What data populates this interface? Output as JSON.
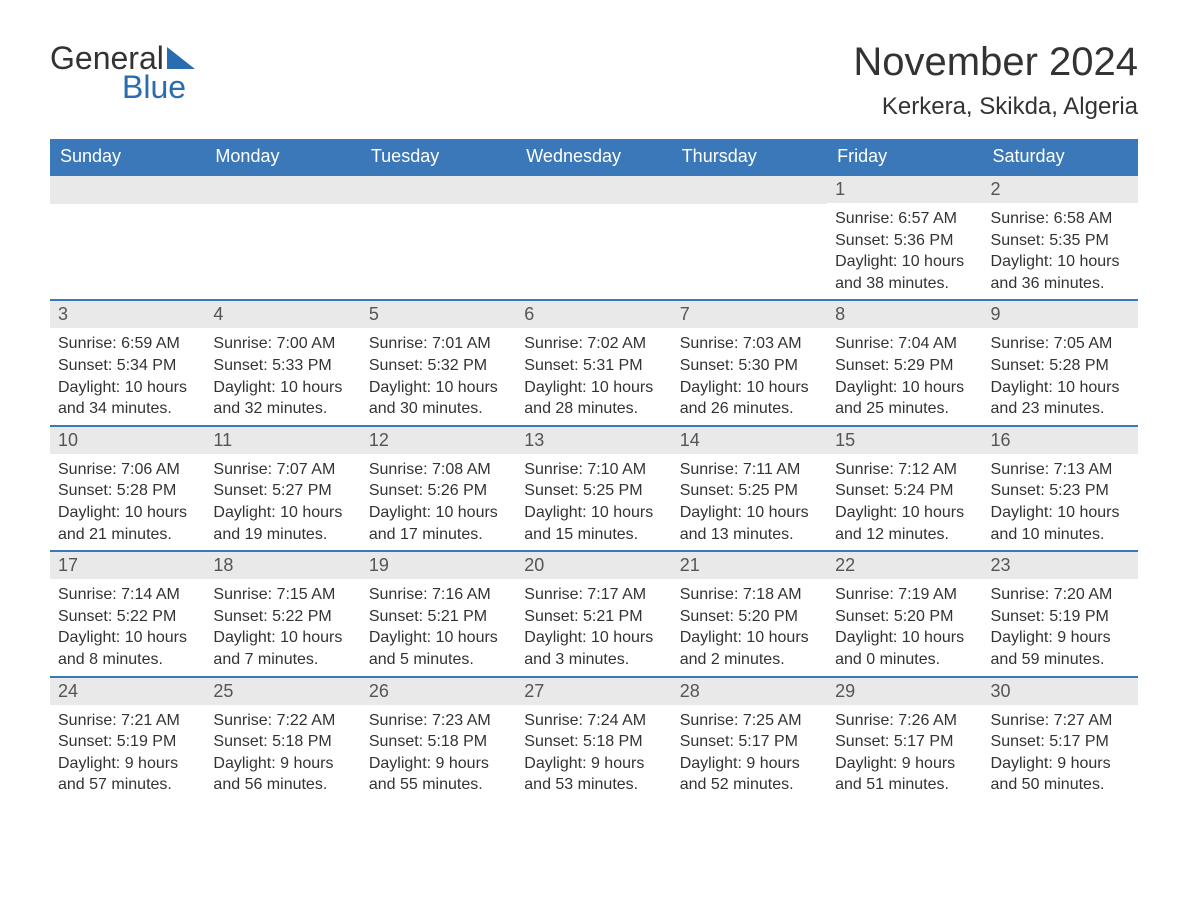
{
  "logo": {
    "part1": "General",
    "part2": "Blue"
  },
  "title": "November 2024",
  "location": "Kerkera, Skikda, Algeria",
  "colors": {
    "header_bg": "#3b78b9",
    "header_text": "#ffffff",
    "daynum_bg": "#e9e9e9",
    "border": "#3b78b9",
    "logo_blue": "#2a6cb0",
    "text": "#333333"
  },
  "day_names": [
    "Sunday",
    "Monday",
    "Tuesday",
    "Wednesday",
    "Thursday",
    "Friday",
    "Saturday"
  ],
  "weeks": [
    [
      {
        "empty": true
      },
      {
        "empty": true
      },
      {
        "empty": true
      },
      {
        "empty": true
      },
      {
        "empty": true
      },
      {
        "num": "1",
        "sunrise": "6:57 AM",
        "sunset": "5:36 PM",
        "daylight": "10 hours and 38 minutes."
      },
      {
        "num": "2",
        "sunrise": "6:58 AM",
        "sunset": "5:35 PM",
        "daylight": "10 hours and 36 minutes."
      }
    ],
    [
      {
        "num": "3",
        "sunrise": "6:59 AM",
        "sunset": "5:34 PM",
        "daylight": "10 hours and 34 minutes."
      },
      {
        "num": "4",
        "sunrise": "7:00 AM",
        "sunset": "5:33 PM",
        "daylight": "10 hours and 32 minutes."
      },
      {
        "num": "5",
        "sunrise": "7:01 AM",
        "sunset": "5:32 PM",
        "daylight": "10 hours and 30 minutes."
      },
      {
        "num": "6",
        "sunrise": "7:02 AM",
        "sunset": "5:31 PM",
        "daylight": "10 hours and 28 minutes."
      },
      {
        "num": "7",
        "sunrise": "7:03 AM",
        "sunset": "5:30 PM",
        "daylight": "10 hours and 26 minutes."
      },
      {
        "num": "8",
        "sunrise": "7:04 AM",
        "sunset": "5:29 PM",
        "daylight": "10 hours and 25 minutes."
      },
      {
        "num": "9",
        "sunrise": "7:05 AM",
        "sunset": "5:28 PM",
        "daylight": "10 hours and 23 minutes."
      }
    ],
    [
      {
        "num": "10",
        "sunrise": "7:06 AM",
        "sunset": "5:28 PM",
        "daylight": "10 hours and 21 minutes."
      },
      {
        "num": "11",
        "sunrise": "7:07 AM",
        "sunset": "5:27 PM",
        "daylight": "10 hours and 19 minutes."
      },
      {
        "num": "12",
        "sunrise": "7:08 AM",
        "sunset": "5:26 PM",
        "daylight": "10 hours and 17 minutes."
      },
      {
        "num": "13",
        "sunrise": "7:10 AM",
        "sunset": "5:25 PM",
        "daylight": "10 hours and 15 minutes."
      },
      {
        "num": "14",
        "sunrise": "7:11 AM",
        "sunset": "5:25 PM",
        "daylight": "10 hours and 13 minutes."
      },
      {
        "num": "15",
        "sunrise": "7:12 AM",
        "sunset": "5:24 PM",
        "daylight": "10 hours and 12 minutes."
      },
      {
        "num": "16",
        "sunrise": "7:13 AM",
        "sunset": "5:23 PM",
        "daylight": "10 hours and 10 minutes."
      }
    ],
    [
      {
        "num": "17",
        "sunrise": "7:14 AM",
        "sunset": "5:22 PM",
        "daylight": "10 hours and 8 minutes."
      },
      {
        "num": "18",
        "sunrise": "7:15 AM",
        "sunset": "5:22 PM",
        "daylight": "10 hours and 7 minutes."
      },
      {
        "num": "19",
        "sunrise": "7:16 AM",
        "sunset": "5:21 PM",
        "daylight": "10 hours and 5 minutes."
      },
      {
        "num": "20",
        "sunrise": "7:17 AM",
        "sunset": "5:21 PM",
        "daylight": "10 hours and 3 minutes."
      },
      {
        "num": "21",
        "sunrise": "7:18 AM",
        "sunset": "5:20 PM",
        "daylight": "10 hours and 2 minutes."
      },
      {
        "num": "22",
        "sunrise": "7:19 AM",
        "sunset": "5:20 PM",
        "daylight": "10 hours and 0 minutes."
      },
      {
        "num": "23",
        "sunrise": "7:20 AM",
        "sunset": "5:19 PM",
        "daylight": "9 hours and 59 minutes."
      }
    ],
    [
      {
        "num": "24",
        "sunrise": "7:21 AM",
        "sunset": "5:19 PM",
        "daylight": "9 hours and 57 minutes."
      },
      {
        "num": "25",
        "sunrise": "7:22 AM",
        "sunset": "5:18 PM",
        "daylight": "9 hours and 56 minutes."
      },
      {
        "num": "26",
        "sunrise": "7:23 AM",
        "sunset": "5:18 PM",
        "daylight": "9 hours and 55 minutes."
      },
      {
        "num": "27",
        "sunrise": "7:24 AM",
        "sunset": "5:18 PM",
        "daylight": "9 hours and 53 minutes."
      },
      {
        "num": "28",
        "sunrise": "7:25 AM",
        "sunset": "5:17 PM",
        "daylight": "9 hours and 52 minutes."
      },
      {
        "num": "29",
        "sunrise": "7:26 AM",
        "sunset": "5:17 PM",
        "daylight": "9 hours and 51 minutes."
      },
      {
        "num": "30",
        "sunrise": "7:27 AM",
        "sunset": "5:17 PM",
        "daylight": "9 hours and 50 minutes."
      }
    ]
  ],
  "labels": {
    "sunrise": "Sunrise: ",
    "sunset": "Sunset: ",
    "daylight": "Daylight: "
  }
}
